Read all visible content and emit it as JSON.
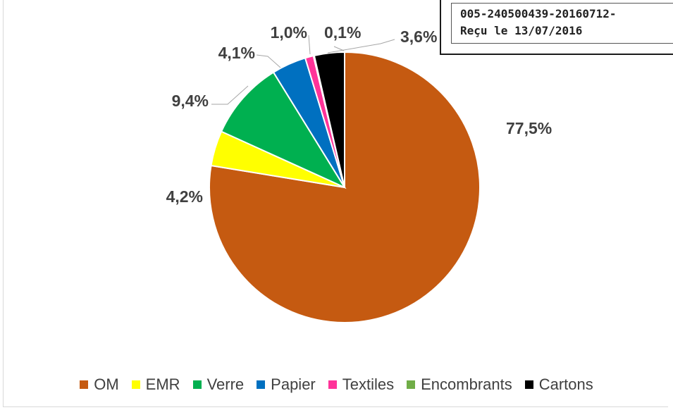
{
  "stamp": {
    "line1": "005-240500439-20160712-",
    "line2": "Reçu le 13/07/2016"
  },
  "chart_data": {
    "type": "pie",
    "start_angle_deg": 0,
    "direction": "clockwise",
    "slices": [
      {
        "name": "OM",
        "value": 77.5,
        "label": "77,5%",
        "color": "#c55a11"
      },
      {
        "name": "EMR",
        "value": 4.2,
        "label": "4,2%",
        "color": "#ffff00"
      },
      {
        "name": "Verre",
        "value": 9.4,
        "label": "9,4%",
        "color": "#00b050"
      },
      {
        "name": "Papier",
        "value": 4.1,
        "label": "4,1%",
        "color": "#0070c0"
      },
      {
        "name": "Textiles",
        "value": 1.0,
        "label": "1,0%",
        "color": "#ff3399"
      },
      {
        "name": "Encombrants",
        "value": 0.1,
        "label": "0,1%",
        "color": "#70ad47"
      },
      {
        "name": "Cartons",
        "value": 3.6,
        "label": "3,6%",
        "color": "#000000"
      }
    ],
    "legend_position": "bottom",
    "title": ""
  }
}
